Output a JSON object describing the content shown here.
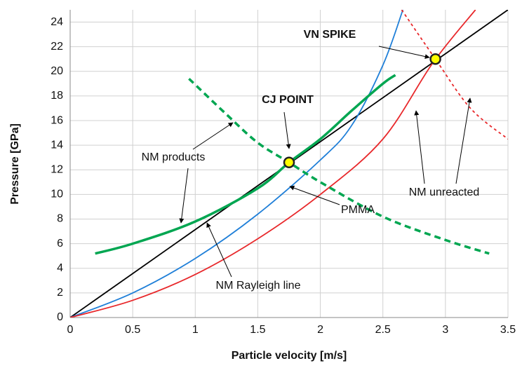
{
  "chart_data": {
    "type": "line",
    "xlabel": "Particle velocity [m/s]",
    "ylabel": "Pressure [GPa]",
    "xlim": [
      0,
      3.5
    ],
    "ylim": [
      0,
      25
    ],
    "xticks": [
      0,
      0.5,
      1,
      1.5,
      2,
      2.5,
      3,
      3.5
    ],
    "yticks": [
      0,
      2,
      4,
      6,
      8,
      10,
      12,
      14,
      16,
      18,
      20,
      22,
      24
    ],
    "grid": true,
    "series": [
      {
        "color": "#000000",
        "style": "solid",
        "x": [
          0,
          3.5
        ],
        "values": [
          0,
          25
        ]
      },
      {
        "color": "#1f7fd8",
        "style": "solid",
        "x": [
          0,
          0.5,
          1,
          1.5,
          2,
          2.25,
          2.5,
          2.66
        ],
        "values": [
          0,
          2,
          4.8,
          8.4,
          12.8,
          15.6,
          20.5,
          25
        ]
      },
      {
        "color": "#e8282b",
        "style": "solid",
        "x": [
          0,
          0.5,
          1,
          1.5,
          2,
          2.5,
          2.9,
          3.24
        ],
        "values": [
          0,
          1.4,
          3.5,
          6.4,
          10,
          14.5,
          20.7,
          25
        ]
      },
      {
        "color": "#00a651",
        "style": "solid",
        "x": [
          0.2,
          0.5,
          1,
          1.5,
          1.75,
          2,
          2.25,
          2.5,
          2.6
        ],
        "values": [
          5.2,
          6,
          7.8,
          10.5,
          12.6,
          14.5,
          16.8,
          19,
          19.7
        ]
      },
      {
        "color": "#00a651",
        "style": "dashed",
        "x": [
          0.95,
          1.25,
          1.5,
          1.75,
          2,
          2.5,
          3,
          3.35
        ],
        "values": [
          19.4,
          16.5,
          14.2,
          12.6,
          11,
          8.2,
          6.3,
          5.2
        ]
      },
      {
        "color": "#e8282b",
        "style": "dashed",
        "x": [
          2.65,
          2.92,
          3.2,
          3.5
        ],
        "values": [
          25,
          21,
          17,
          14.5
        ]
      }
    ],
    "points": {
      "color": "#ffff00",
      "x": [
        1.75,
        2.92
      ],
      "values": [
        12.6,
        21
      ]
    },
    "annotations": [
      "VN SPIKE",
      "CJ POINT",
      "NM products",
      "NM unreacted",
      "PMMA",
      "NM Rayleigh line"
    ]
  }
}
